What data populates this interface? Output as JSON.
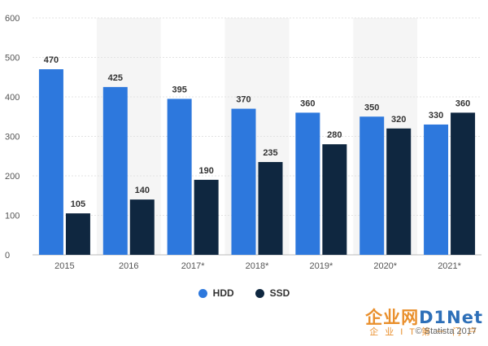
{
  "chart_data": {
    "type": "bar",
    "categories": [
      "2015",
      "2016",
      "2017*",
      "2018*",
      "2019*",
      "2020*",
      "2021*"
    ],
    "series": [
      {
        "name": "HDD",
        "color": "#2d78dd",
        "values": [
          470,
          425,
          395,
          370,
          360,
          350,
          330
        ]
      },
      {
        "name": "SSD",
        "color": "#0f2740",
        "values": [
          105,
          140,
          190,
          235,
          280,
          320,
          360
        ]
      }
    ],
    "title": "",
    "xlabel": "",
    "ylabel": "",
    "ylim": [
      0,
      600
    ],
    "yticks": [
      0,
      100,
      200,
      300,
      400,
      500,
      600
    ],
    "grid": "horizontal",
    "alternating_column_shading": true,
    "legend_position": "bottom-center"
  },
  "watermark": {
    "logo_main": "企业网",
    "logo_brand": "D1Net",
    "logo_sub": "企业IT第一门户",
    "credit": "© Statista 2017"
  }
}
